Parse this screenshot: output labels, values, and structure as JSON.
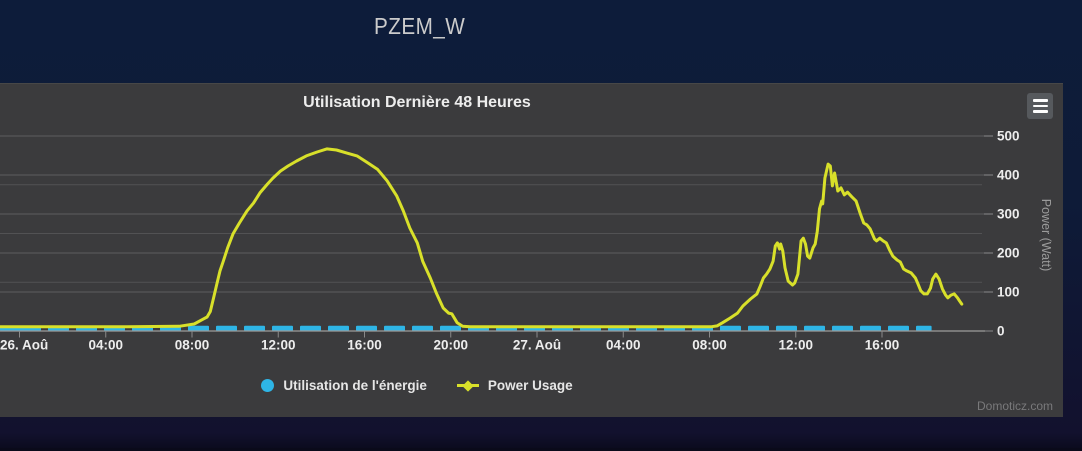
{
  "page": {
    "title": "PZEM_W",
    "background_top": "#0d1c3a",
    "background_bottom": "#12112e"
  },
  "chart": {
    "title": "Utilisation Dernière 48 Heures",
    "watermark": "Domoticz.com",
    "panel_bg": "#3b3b3d",
    "grid_color": "#5b5b5b",
    "axis_line_color": "#9c9c9c",
    "label_color": "#ededed",
    "legend": [
      {
        "label": "Utilisation de l'énergie",
        "color": "#2eb5e6",
        "marker": "circle"
      },
      {
        "label": "Power Usage",
        "color": "#d8e02a",
        "marker": "line-diamond"
      }
    ]
  },
  "chart_data": {
    "type": "line",
    "title": "Utilisation Dernière 48 Heures",
    "xlabel": "",
    "ylabel": "Power (Watt)",
    "ylim": [
      0,
      500
    ],
    "yticks": [
      0,
      100,
      200,
      300,
      400,
      500
    ],
    "x_unit": "hours since 26. Aoû 00:00",
    "xticks": [
      {
        "t": 0,
        "label": "26. Aoû"
      },
      {
        "t": 4,
        "label": "04:00"
      },
      {
        "t": 8,
        "label": "08:00"
      },
      {
        "t": 12,
        "label": "12:00"
      },
      {
        "t": 16,
        "label": "16:00"
      },
      {
        "t": 20,
        "label": "20:00"
      },
      {
        "t": 24,
        "label": "27. Aoû"
      },
      {
        "t": 28,
        "label": "04:00"
      },
      {
        "t": 32,
        "label": "08:00"
      },
      {
        "t": 36,
        "label": "12:00"
      },
      {
        "t": 40,
        "label": "16:00"
      }
    ],
    "series": [
      {
        "name": "Power Usage",
        "type": "line",
        "color": "#d8e02a",
        "points_t_hours_watt": [
          [
            -0.9,
            11
          ],
          [
            2,
            11
          ],
          [
            5,
            11
          ],
          [
            7.4,
            12
          ],
          [
            8.1,
            18
          ],
          [
            8.5,
            30
          ],
          [
            8.7,
            36
          ],
          [
            8.85,
            50
          ],
          [
            9.0,
            85
          ],
          [
            9.15,
            120
          ],
          [
            9.3,
            154
          ],
          [
            9.45,
            179
          ],
          [
            9.65,
            213
          ],
          [
            9.9,
            249
          ],
          [
            10.2,
            277
          ],
          [
            10.55,
            308
          ],
          [
            10.85,
            328
          ],
          [
            11.15,
            354
          ],
          [
            11.5,
            377
          ],
          [
            11.75,
            392
          ],
          [
            12.1,
            410
          ],
          [
            12.45,
            423
          ],
          [
            12.85,
            436
          ],
          [
            13.3,
            449
          ],
          [
            13.8,
            459
          ],
          [
            14.25,
            467
          ],
          [
            14.7,
            464
          ],
          [
            15.2,
            456
          ],
          [
            15.65,
            449
          ],
          [
            16.1,
            433
          ],
          [
            16.6,
            415
          ],
          [
            17.05,
            385
          ],
          [
            17.5,
            346
          ],
          [
            17.8,
            308
          ],
          [
            18.1,
            264
          ],
          [
            18.45,
            226
          ],
          [
            18.7,
            179
          ],
          [
            19.05,
            136
          ],
          [
            19.35,
            95
          ],
          [
            19.65,
            59
          ],
          [
            19.9,
            46
          ],
          [
            20.05,
            44
          ],
          [
            20.3,
            21
          ],
          [
            20.55,
            12
          ],
          [
            20.9,
            11
          ],
          [
            22,
            11
          ],
          [
            24,
            11
          ],
          [
            26,
            11
          ],
          [
            28,
            11
          ],
          [
            30,
            11
          ],
          [
            31.5,
            11
          ],
          [
            32.1,
            11
          ],
          [
            32.35,
            13
          ],
          [
            32.6,
            21
          ],
          [
            32.95,
            33
          ],
          [
            33.3,
            46
          ],
          [
            33.55,
            64
          ],
          [
            33.9,
            82
          ],
          [
            34.2,
            95
          ],
          [
            34.35,
            115
          ],
          [
            34.5,
            136
          ],
          [
            34.65,
            146
          ],
          [
            34.8,
            159
          ],
          [
            34.95,
            179
          ],
          [
            35.05,
            218
          ],
          [
            35.15,
            226
          ],
          [
            35.25,
            210
          ],
          [
            35.3,
            223
          ],
          [
            35.4,
            205
          ],
          [
            35.5,
            162
          ],
          [
            35.65,
            128
          ],
          [
            35.85,
            118
          ],
          [
            35.95,
            123
          ],
          [
            36.1,
            146
          ],
          [
            36.25,
            231
          ],
          [
            36.35,
            238
          ],
          [
            36.45,
            223
          ],
          [
            36.55,
            192
          ],
          [
            36.65,
            187
          ],
          [
            36.8,
            213
          ],
          [
            36.9,
            223
          ],
          [
            37.0,
            256
          ],
          [
            37.1,
            313
          ],
          [
            37.2,
            333
          ],
          [
            37.25,
            326
          ],
          [
            37.35,
            392
          ],
          [
            37.5,
            428
          ],
          [
            37.6,
            423
          ],
          [
            37.7,
            372
          ],
          [
            37.8,
            405
          ],
          [
            37.95,
            359
          ],
          [
            38.1,
            367
          ],
          [
            38.25,
            349
          ],
          [
            38.4,
            356
          ],
          [
            38.6,
            344
          ],
          [
            38.8,
            333
          ],
          [
            39.0,
            300
          ],
          [
            39.15,
            277
          ],
          [
            39.3,
            272
          ],
          [
            39.45,
            262
          ],
          [
            39.65,
            236
          ],
          [
            39.75,
            231
          ],
          [
            39.9,
            238
          ],
          [
            40.05,
            231
          ],
          [
            40.2,
            226
          ],
          [
            40.35,
            208
          ],
          [
            40.5,
            192
          ],
          [
            40.7,
            182
          ],
          [
            40.85,
            177
          ],
          [
            41.0,
            159
          ],
          [
            41.15,
            154
          ],
          [
            41.35,
            149
          ],
          [
            41.55,
            136
          ],
          [
            41.65,
            123
          ],
          [
            41.8,
            103
          ],
          [
            41.95,
            95
          ],
          [
            42.1,
            95
          ],
          [
            42.25,
            110
          ],
          [
            42.35,
            133
          ],
          [
            42.5,
            146
          ],
          [
            42.65,
            133
          ],
          [
            42.8,
            108
          ],
          [
            42.95,
            92
          ],
          [
            43.05,
            85
          ],
          [
            43.2,
            92
          ],
          [
            43.35,
            95
          ],
          [
            43.5,
            85
          ],
          [
            43.6,
            77
          ],
          [
            43.7,
            69
          ]
        ]
      },
      {
        "name": "Utilisation de l'énergie",
        "type": "baseline-dashes",
        "color": "#2eb5e6",
        "t_start": -0.9,
        "t_end": 42.3,
        "note": "near-zero energy values drawn as thick dashes along the x-axis"
      }
    ],
    "legend_position": "bottom-center",
    "grid": true,
    "y_axis_side": "right"
  }
}
